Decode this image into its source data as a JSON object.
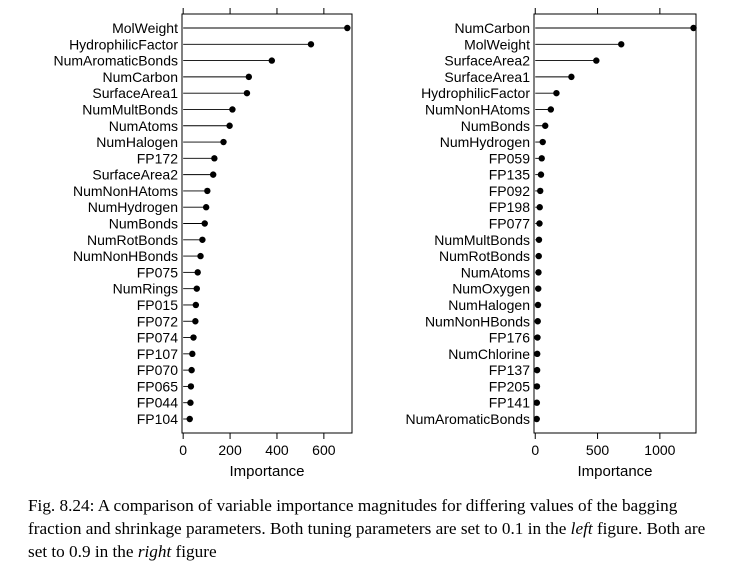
{
  "chart_data": [
    {
      "type": "dot",
      "xlabel": "Importance",
      "x_ticks": [
        0,
        200,
        400,
        600
      ],
      "xlim": [
        -5,
        720
      ],
      "categories": [
        "MolWeight",
        "HydrophilicFactor",
        "NumAromaticBonds",
        "NumCarbon",
        "SurfaceArea1",
        "NumMultBonds",
        "NumAtoms",
        "NumHalogen",
        "FP172",
        "SurfaceArea2",
        "NumNonHAtoms",
        "NumHydrogen",
        "NumBonds",
        "NumRotBonds",
        "NumNonHBonds",
        "FP075",
        "NumRings",
        "FP015",
        "FP072",
        "FP074",
        "FP107",
        "FP070",
        "FP065",
        "FP044",
        "FP104"
      ],
      "values": [
        700,
        545,
        378,
        280,
        272,
        210,
        198,
        172,
        133,
        128,
        103,
        98,
        92,
        82,
        74,
        62,
        58,
        54,
        52,
        44,
        39,
        36,
        33,
        31,
        28
      ]
    },
    {
      "type": "dot",
      "xlabel": "Importance",
      "x_ticks": [
        0,
        500,
        1000
      ],
      "xlim": [
        -10,
        1290
      ],
      "categories": [
        "NumCarbon",
        "MolWeight",
        "SurfaceArea2",
        "SurfaceArea1",
        "HydrophilicFactor",
        "NumNonHAtoms",
        "NumBonds",
        "NumHydrogen",
        "FP059",
        "FP135",
        "FP092",
        "FP198",
        "FP077",
        "NumMultBonds",
        "NumRotBonds",
        "NumAtoms",
        "NumOxygen",
        "NumHalogen",
        "NumNonHBonds",
        "FP176",
        "NumChlorine",
        "FP137",
        "FP205",
        "FP141",
        "NumAromaticBonds"
      ],
      "values": [
        1270,
        690,
        490,
        290,
        170,
        125,
        80,
        60,
        52,
        46,
        40,
        36,
        34,
        30,
        28,
        26,
        24,
        22,
        20,
        18,
        16,
        15,
        14,
        13,
        12
      ]
    }
  ],
  "caption": {
    "part1": "Fig. 8.24: A comparison of variable importance magnitudes for differing values of the bagging fraction and shrinkage parameters. Both tuning parameters are set to 0.1 in the ",
    "em1": "left",
    "part2": " figure. Both are set to 0.9 in the ",
    "em2": "right",
    "part3": " figure"
  }
}
